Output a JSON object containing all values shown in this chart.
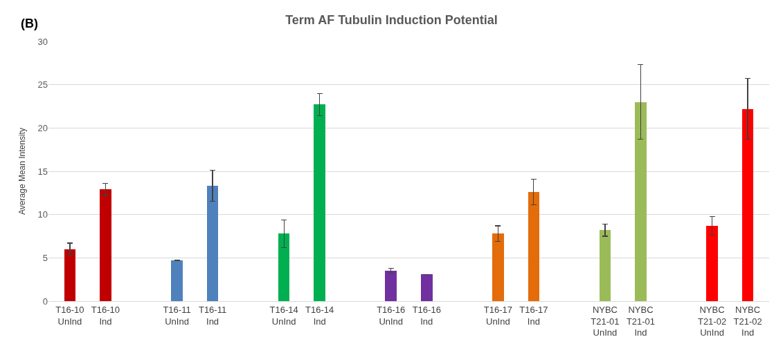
{
  "chart_data": {
    "type": "bar",
    "title": "Term AF Tubulin Induction Potential",
    "ylabel": "Average Mean Intensity",
    "annotations": [
      "(B)"
    ],
    "categories": [
      "T16-10\nUnInd",
      "T16-10\nInd",
      null,
      "T16-11\nUnInd",
      "T16-11\nInd",
      null,
      "T16-14\nUnInd",
      "T16-14\nInd",
      null,
      "T16-16\nUnInd",
      "T16-16\nInd",
      null,
      "T16-17\nUnInd",
      "T16-17\nInd",
      null,
      "NYBC\nT21-01\nUnInd",
      "NYBC\nT21-01\nInd",
      null,
      "NYBC\nT21-02\nUnInd",
      "NYBC\nT21-02\nInd"
    ],
    "values": [
      6.0,
      12.9,
      null,
      4.7,
      13.3,
      null,
      7.8,
      22.7,
      null,
      3.5,
      3.1,
      null,
      7.8,
      12.6,
      null,
      8.2,
      23.0,
      null,
      8.7,
      22.2
    ],
    "errors": [
      0.7,
      0.7,
      null,
      null,
      1.8,
      null,
      1.6,
      1.3,
      null,
      0.3,
      null,
      null,
      0.9,
      1.5,
      null,
      0.7,
      4.3,
      null,
      1.1,
      3.5
    ],
    "colors": [
      "#c00000",
      "#c00000",
      "#ffffff",
      "#4f81bd",
      "#4f81bd",
      "#ffffff",
      "#00b050",
      "#00b050",
      "#ffffff",
      "#7030a0",
      "#7030a0",
      "#ffffff",
      "#e46c0a",
      "#e46c0a",
      "#ffffff",
      "#9bbb59",
      "#9bbb59",
      "#ffffff",
      "#ff0000",
      "#ff0000"
    ],
    "ylim": [
      0,
      30
    ],
    "yticks": [
      0,
      5,
      10,
      15,
      20,
      25,
      30
    ],
    "grid": "y"
  }
}
